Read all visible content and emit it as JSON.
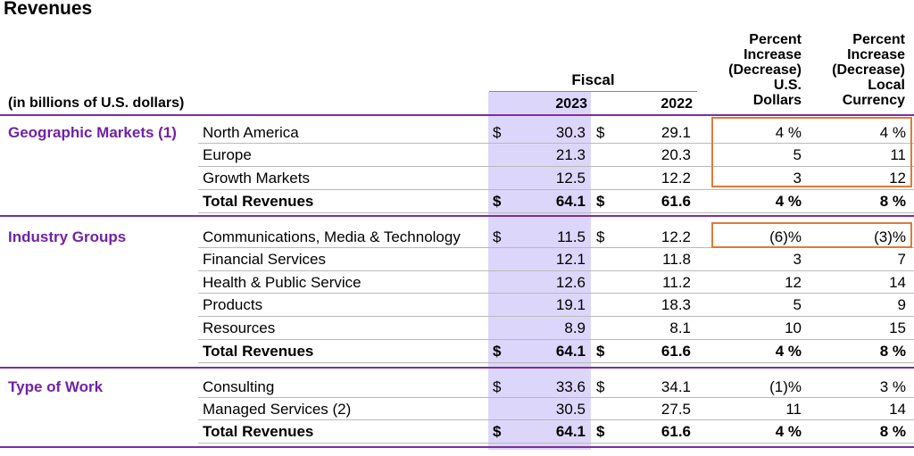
{
  "title": "Revenues",
  "header": {
    "units": "(in billions of U.S. dollars)",
    "fiscal": "Fiscal",
    "year1": "2023",
    "year2": "2022",
    "usd_col": [
      "Percent",
      "Increase",
      "(Decrease)",
      "U.S.",
      "Dollars"
    ],
    "local_col": [
      "Percent",
      "Increase",
      "(Decrease)",
      "Local",
      "Currency"
    ]
  },
  "sections": [
    {
      "name": "Geographic Markets (1)",
      "rows": [
        {
          "label": "North America",
          "cur1": "$",
          "v2023": "30.3",
          "cur2": "$",
          "v2022": "29.1",
          "pct_usd": "4 %",
          "pct_local": "4 %"
        },
        {
          "label": "Europe",
          "cur1": "",
          "v2023": "21.3",
          "cur2": "",
          "v2022": "20.3",
          "pct_usd": "5",
          "pct_local": "11"
        },
        {
          "label": "Growth Markets",
          "cur1": "",
          "v2023": "12.5",
          "cur2": "",
          "v2022": "12.2",
          "pct_usd": "3",
          "pct_local": "12"
        }
      ],
      "total": {
        "label": "Total Revenues",
        "cur1": "$",
        "v2023": "64.1",
        "cur2": "$",
        "v2022": "61.6",
        "pct_usd": "4 %",
        "pct_local": "8 %"
      }
    },
    {
      "name": "Industry Groups",
      "rows": [
        {
          "label": "Communications, Media & Technology",
          "cur1": "$",
          "v2023": "11.5",
          "cur2": "$",
          "v2022": "12.2",
          "pct_usd": "(6)%",
          "pct_local": "(3)%"
        },
        {
          "label": "Financial Services",
          "cur1": "",
          "v2023": "12.1",
          "cur2": "",
          "v2022": "11.8",
          "pct_usd": "3",
          "pct_local": "7"
        },
        {
          "label": "Health & Public Service",
          "cur1": "",
          "v2023": "12.6",
          "cur2": "",
          "v2022": "11.2",
          "pct_usd": "12",
          "pct_local": "14"
        },
        {
          "label": "Products",
          "cur1": "",
          "v2023": "19.1",
          "cur2": "",
          "v2022": "18.3",
          "pct_usd": "5",
          "pct_local": "9"
        },
        {
          "label": "Resources",
          "cur1": "",
          "v2023": "8.9",
          "cur2": "",
          "v2022": "8.1",
          "pct_usd": "10",
          "pct_local": "15"
        }
      ],
      "total": {
        "label": "Total Revenues",
        "cur1": "$",
        "v2023": "64.1",
        "cur2": "$",
        "v2022": "61.6",
        "pct_usd": "4 %",
        "pct_local": "8 %"
      }
    },
    {
      "name": "Type of Work",
      "rows": [
        {
          "label": "Consulting",
          "cur1": "$",
          "v2023": "33.6",
          "cur2": "$",
          "v2022": "34.1",
          "pct_usd": "(1)%",
          "pct_local": "3 %"
        },
        {
          "label": "Managed Services (2)",
          "cur1": "",
          "v2023": "30.5",
          "cur2": "",
          "v2022": "27.5",
          "pct_usd": "11",
          "pct_local": "14"
        }
      ],
      "total": {
        "label": "Total Revenues",
        "cur1": "$",
        "v2023": "64.1",
        "cur2": "$",
        "v2022": "61.6",
        "pct_usd": "4 %",
        "pct_local": "8 %"
      }
    }
  ],
  "colors": {
    "section_purple": "#7022a6",
    "highlight": "#ddd6fb",
    "callout": "#e07a35"
  }
}
